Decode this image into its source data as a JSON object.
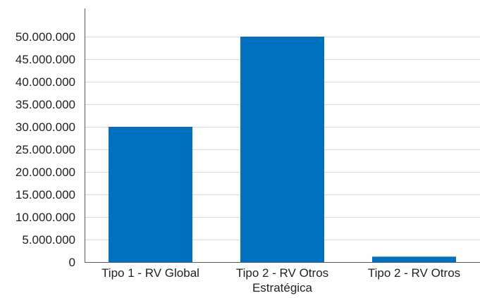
{
  "chart_data": {
    "type": "bar",
    "categories": [
      [
        "Tipo 1 - RV Global"
      ],
      [
        "Tipo 2 - RV Otros",
        "Estratégica"
      ],
      [
        "Tipo 2 - RV Otros"
      ]
    ],
    "values": [
      30000000,
      50000000,
      1200000
    ],
    "ylim": [
      0,
      50000000
    ],
    "yticks": [
      0,
      5000000,
      10000000,
      15000000,
      20000000,
      25000000,
      30000000,
      35000000,
      40000000,
      45000000,
      50000000
    ],
    "ytick_labels": [
      "0",
      "5.000.000",
      "10.000.000",
      "15.000.000",
      "20.000.000",
      "25.000.000",
      "30.000.000",
      "35.000.000",
      "40.000.000",
      "45.000.000",
      "50.000.000"
    ],
    "grid": true,
    "title": "",
    "xlabel": "",
    "ylabel": "",
    "colors": {
      "bar": "#0070c0",
      "grid": "#d9d9d9",
      "axis": "#595959"
    }
  }
}
